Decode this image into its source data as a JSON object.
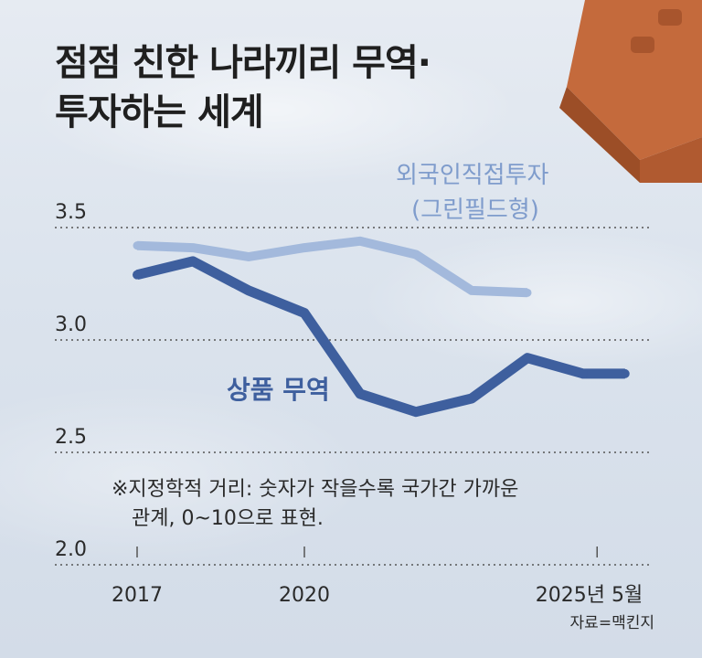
{
  "title": {
    "line1": "점점 친한 나라끼리 무역·",
    "line2": "투자하는 세계"
  },
  "note": {
    "line1": "※지정학적 거리: 숫자가 작을수록 국가간 가까운",
    "line2": "관계, 0~10으로 표현."
  },
  "source": "자료=맥킨지",
  "colors": {
    "goods": "#3e5f9e",
    "fdi": "#a3b9dc",
    "fdi_label": "#7f9ccc",
    "brick": "#c46a3c"
  },
  "chart_data": {
    "type": "line",
    "ylim": [
      2.0,
      3.5
    ],
    "y_ticks": [
      {
        "value": 3.5,
        "label": "3.5"
      },
      {
        "value": 3.0,
        "label": "3.0"
      },
      {
        "value": 2.5,
        "label": "2.5"
      },
      {
        "value": 2.0,
        "label": "2.0"
      }
    ],
    "x_ticks": [
      {
        "x": 0,
        "label": "2017"
      },
      {
        "x": 6,
        "label": "2020"
      },
      {
        "x": 16.5,
        "label": "2025년 5월"
      }
    ],
    "grid": "horizontal-dotted",
    "series": [
      {
        "name_line1": "외국인직접투자",
        "name_line2": "(그린필드형)",
        "x": [
          0,
          2,
          4,
          6,
          8,
          10,
          12,
          14
        ],
        "values": [
          3.42,
          3.41,
          3.37,
          3.41,
          3.44,
          3.38,
          3.22,
          3.21
        ]
      },
      {
        "name": "상품 무역",
        "x": [
          0,
          2,
          4,
          6,
          8,
          10,
          12,
          14,
          16,
          17.5
        ],
        "values": [
          3.29,
          3.35,
          3.22,
          3.12,
          2.76,
          2.68,
          2.74,
          2.92,
          2.85,
          2.85
        ]
      }
    ]
  }
}
